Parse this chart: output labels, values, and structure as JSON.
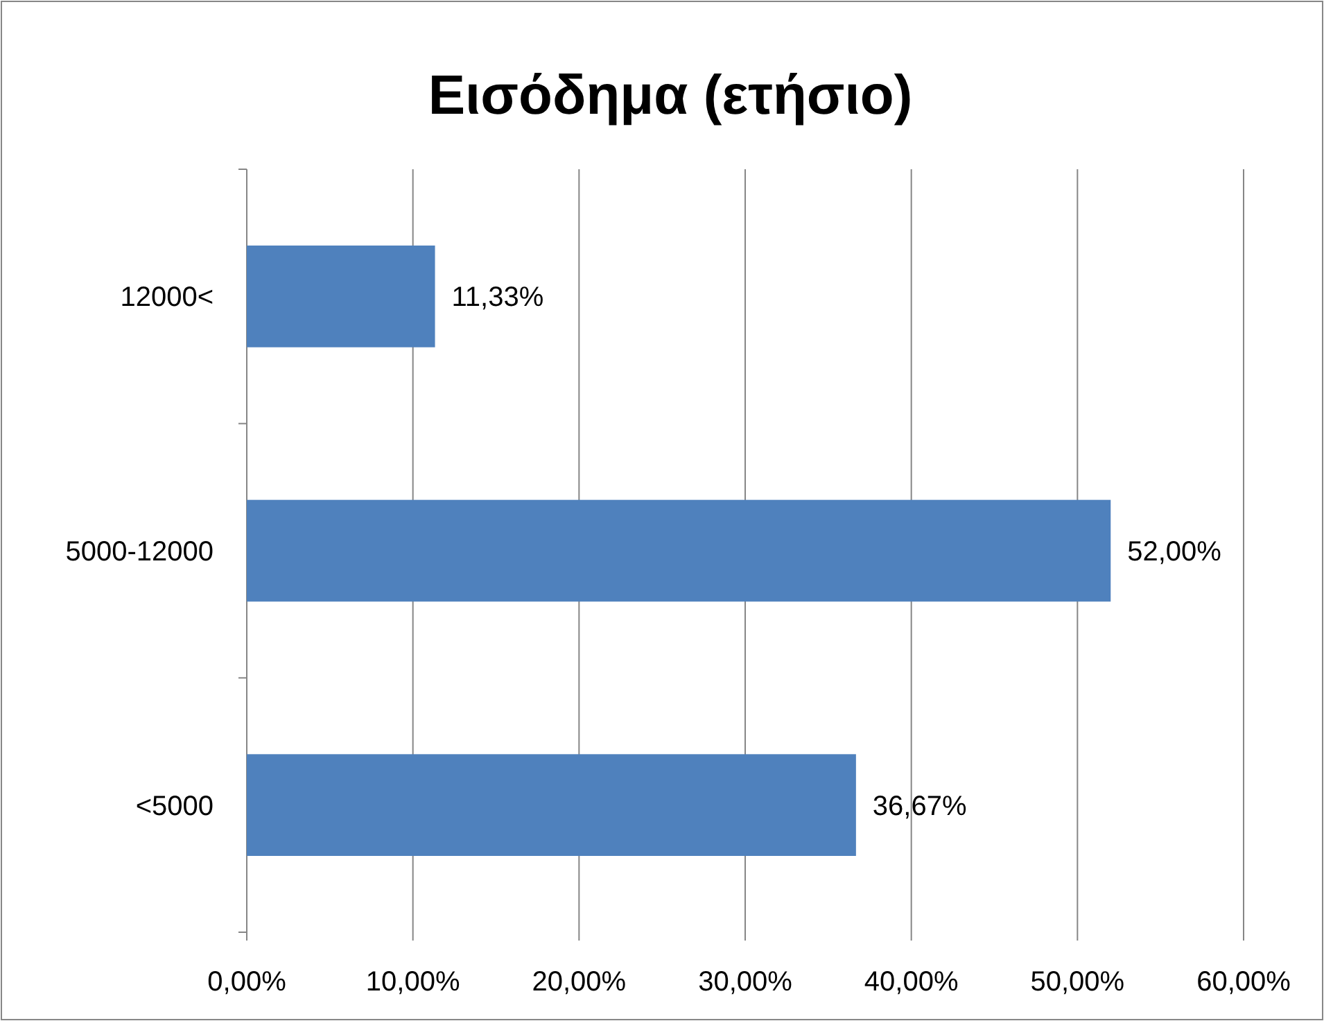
{
  "chart_data": {
    "type": "bar",
    "orientation": "horizontal",
    "title": "Εισόδημα (ετήσιο)",
    "categories": [
      "12000<",
      "5000-12000",
      "<5000"
    ],
    "values": [
      11.33,
      52,
      36.67
    ],
    "value_labels": [
      "11,33%",
      "52,00%",
      "36,67%"
    ],
    "color": "#4f81bd",
    "xlim": [
      0,
      60
    ],
    "xticks": [
      {
        "value": 0,
        "label": "0,00%"
      },
      {
        "value": 10,
        "label": "10,00%"
      },
      {
        "value": 20,
        "label": "20,00%"
      },
      {
        "value": 30,
        "label": "30,00%"
      },
      {
        "value": 40,
        "label": "40,00%"
      },
      {
        "value": 50,
        "label": "50,00%"
      },
      {
        "value": 60,
        "label": "60,00%"
      }
    ],
    "grid": "x"
  }
}
